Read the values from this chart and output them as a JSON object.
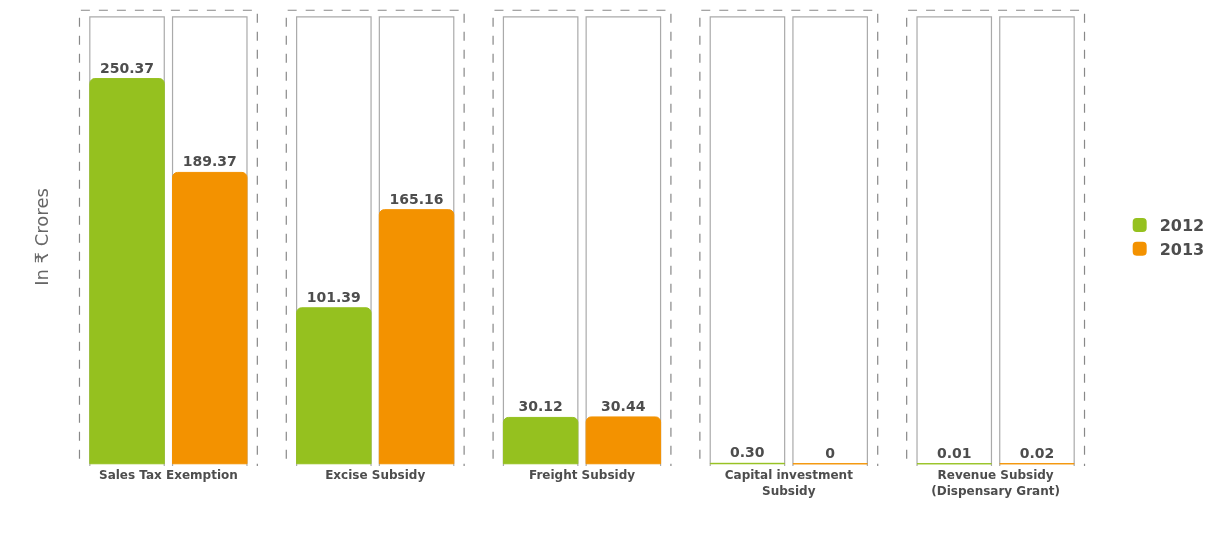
{
  "chart_data": {
    "type": "bar",
    "ylabel": "In ₹ Crores",
    "categories": [
      "Sales Tax Exemption",
      "Excise Subsidy",
      "Freight Subsidy",
      "Capital investment Subsidy",
      "Revenue Subsidy (Dispensary Grant)"
    ],
    "series": [
      {
        "name": "2012",
        "color": "#95c11f",
        "values": [
          250.37,
          101.39,
          30.12,
          0.3,
          0.01
        ],
        "value_labels": [
          "250.37",
          "101.39",
          "30.12",
          "0.30",
          "0.01"
        ]
      },
      {
        "name": "2013",
        "color": "#f39200",
        "values": [
          189.37,
          165.16,
          30.44,
          0,
          0.02
        ],
        "value_labels": [
          "189.37",
          "165.16",
          "30.44",
          "0",
          "0.02"
        ]
      }
    ],
    "legend": "right",
    "grid": false
  }
}
